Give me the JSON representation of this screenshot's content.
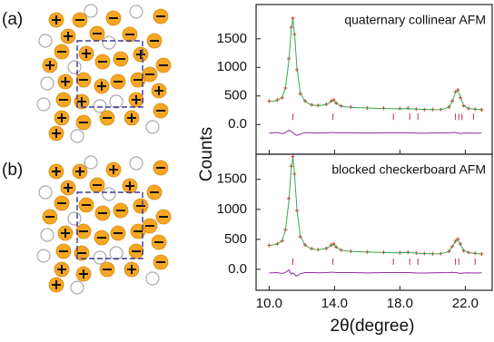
{
  "figure": {
    "panel_labels": [
      "(a)",
      "(b)"
    ],
    "ylabel": "Counts",
    "xlabel": "2θ(degree)"
  },
  "chart_data": [
    {
      "type": "line",
      "title": "quaternary collinear AFM",
      "x": [
        10,
        10.5,
        10.8,
        11.0,
        11.2,
        11.35,
        11.45,
        11.55,
        11.7,
        11.9,
        12.2,
        12.6,
        13.0,
        13.5,
        13.8,
        13.95,
        14.1,
        14.4,
        15,
        16,
        17,
        18,
        18.5,
        19,
        19.5,
        20,
        20.5,
        21,
        21.2,
        21.4,
        21.55,
        21.7,
        21.9,
        22.2,
        22.6,
        23
      ],
      "series": [
        {
          "style": "points",
          "color": "#e8413a",
          "values": [
            410,
            430,
            470,
            640,
            1150,
            1700,
            1860,
            1580,
            960,
            540,
            410,
            345,
            335,
            355,
            410,
            430,
            375,
            325,
            305,
            290,
            285,
            280,
            285,
            270,
            262,
            262,
            265,
            305,
            410,
            570,
            605,
            470,
            330,
            282,
            268,
            258
          ]
        },
        {
          "style": "line",
          "color": "#3aa655",
          "values": [
            400,
            420,
            480,
            650,
            1100,
            1650,
            1850,
            1600,
            1000,
            560,
            400,
            340,
            330,
            350,
            400,
            420,
            380,
            320,
            300,
            290,
            280,
            275,
            280,
            270,
            265,
            260,
            262,
            300,
            400,
            560,
            600,
            480,
            330,
            280,
            270,
            260
          ]
        },
        {
          "style": "line",
          "color": "#8e2aa0",
          "values": [
            -150,
            -140,
            -160,
            -140,
            -100,
            -120,
            -140,
            -170,
            -190,
            -170,
            -140,
            -145,
            -150,
            -145,
            -140,
            -140,
            -145,
            -145,
            -145,
            -150,
            -145,
            -145,
            -145,
            -150,
            -153,
            -148,
            -147,
            -145,
            -140,
            -140,
            -145,
            -160,
            -150,
            -148,
            -152,
            -148
          ]
        }
      ],
      "bragg_x": [
        11.45,
        13.9,
        17.6,
        18.6,
        19.1,
        21.4,
        21.6,
        21.8,
        22.5
      ],
      "xlim": [
        9.2,
        23.7
      ],
      "xticks": [
        10,
        14,
        18,
        22
      ],
      "ylim": [
        -520,
        2100
      ],
      "yticks": [
        {
          "value": 0,
          "label": "0.0"
        },
        500,
        1000,
        1500
      ]
    },
    {
      "type": "line",
      "title": "blocked checkerboard AFM",
      "x": [
        10,
        10.5,
        10.8,
        11.0,
        11.2,
        11.35,
        11.45,
        11.55,
        11.7,
        11.9,
        12.2,
        12.6,
        13.0,
        13.5,
        13.8,
        13.95,
        14.1,
        14.4,
        15,
        16,
        17,
        18,
        18.5,
        19,
        19.5,
        20,
        20.5,
        21,
        21.2,
        21.4,
        21.55,
        21.7,
        21.9,
        22.2,
        22.6,
        23
      ],
      "series": [
        {
          "style": "points",
          "color": "#e8413a",
          "values": [
            400,
            425,
            475,
            660,
            1180,
            1720,
            1880,
            1590,
            980,
            545,
            405,
            345,
            330,
            350,
            405,
            425,
            370,
            320,
            300,
            290,
            282,
            278,
            283,
            270,
            262,
            260,
            262,
            300,
            380,
            470,
            505,
            420,
            310,
            280,
            266,
            256
          ]
        },
        {
          "style": "line",
          "color": "#3aa655",
          "values": [
            395,
            420,
            480,
            660,
            1120,
            1680,
            1870,
            1610,
            1000,
            560,
            400,
            340,
            328,
            348,
            398,
            418,
            375,
            318,
            298,
            288,
            280,
            275,
            280,
            268,
            263,
            258,
            260,
            298,
            375,
            470,
            500,
            415,
            315,
            278,
            266,
            256
          ]
        },
        {
          "style": "line",
          "color": "#8e2aa0",
          "values": [
            -60,
            -55,
            -70,
            -50,
            -10,
            -80,
            -60,
            -90,
            -110,
            -75,
            -55,
            -55,
            -58,
            -55,
            -50,
            -50,
            -55,
            -55,
            -55,
            -60,
            -55,
            -55,
            -55,
            -60,
            -62,
            -58,
            -57,
            -55,
            -52,
            -55,
            -58,
            -70,
            -60,
            -58,
            -62,
            -58
          ]
        }
      ],
      "bragg_x": [
        11.45,
        13.9,
        17.6,
        18.6,
        19.1,
        21.4,
        21.6,
        22.6
      ],
      "xlim": [
        9.2,
        23.7
      ],
      "xticks": [
        {
          "value": 10,
          "label": "10.0"
        },
        {
          "value": 14,
          "label": "14.0"
        },
        {
          "value": 18,
          "label": "18.0"
        },
        {
          "value": 22,
          "label": "22.0"
        }
      ],
      "ylim": [
        -350,
        1920
      ],
      "yticks": [
        {
          "value": 0,
          "label": "0.0"
        },
        500,
        1000,
        1500
      ]
    }
  ]
}
